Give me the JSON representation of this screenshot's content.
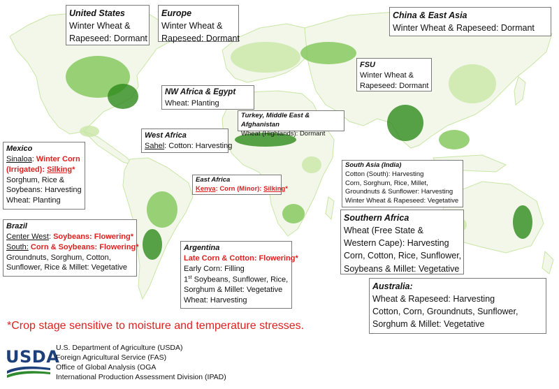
{
  "footnote": "*Crop stage sensitive to moisture and temperature stresses.",
  "agency": {
    "logo_text": "USDA",
    "lines": [
      "U.S. Department of Agriculture (USDA)",
      "Foreign Agricultural Service (FAS)",
      "Office of Global Analysis (OGA",
      "International Production Assessment Division (IPAD)"
    ]
  },
  "colors": {
    "land": "#f2f7ea",
    "crop_light": "#c9e6a6",
    "crop_medium": "#7fc557",
    "crop_dark": "#2e8a1c",
    "box_border": "#7a7a7a",
    "sensitive_text": "#e02020",
    "usda_blue": "#1d3f7a",
    "usda_green": "#2f8a2e"
  },
  "regions": {
    "united_states": {
      "title": "United States",
      "l1": "Winter Wheat &",
      "l2": "Rapeseed: Dormant"
    },
    "europe": {
      "title": "Europe",
      "l1": "Winter Wheat &",
      "l2": "Rapeseed: Dormant"
    },
    "china": {
      "title": "China & East Asia",
      "l1": "Winter Wheat & Rapeseed: Dormant"
    },
    "fsu": {
      "title": "FSU",
      "l1": "Winter Wheat &",
      "l2": "Rapeseed: Dormant"
    },
    "nw_africa": {
      "title": "NW Africa & Egypt",
      "l1": "Wheat: Planting"
    },
    "turkey": {
      "title": "Turkey, Middle East & Afghanistan",
      "l1": "Wheat (Highlands): Dormant"
    },
    "west_africa": {
      "title": "West Africa",
      "l1_u": "Sahel",
      "l1": ": Cotton: Harvesting"
    },
    "mexico": {
      "title": "Mexico",
      "l1_u": "Sinaloa",
      "l1": ": ",
      "l1_r": "Winter Corn",
      "l2_r": "(Irrigated): ",
      "l2_ru": "Silking",
      "l2_r2": "*",
      "l3": "Sorghum, Rice &",
      "l4": "Soybeans: Harvesting",
      "l5": "Wheat: Planting"
    },
    "east_africa": {
      "title": "East Africa",
      "l1_u": "Kenya",
      "l1_r": ": Corn (Minor): ",
      "l1_ru": "Silking",
      "l1_r2": "*"
    },
    "south_asia": {
      "title": "South Asia (India)",
      "l1": "Cotton (South): Harvesting",
      "l2": "Corn, Sorghum, Rice, Millet,",
      "l3": "Groundnuts & Sunflower: Harvesting",
      "l4": "Winter Wheat & Rapeseed: Vegetative"
    },
    "brazil": {
      "title": "Brazil",
      "l1_u": "Center West",
      "l1": ": ",
      "l1_r": "Soybeans: Flowering*",
      "l2_u": "South:",
      "l2_r": " Corn & Soybeans: Flowering*",
      "l3": "Groundnuts, Sorghum, Cotton,",
      "l4": "Sunflower, Rice & Millet: Vegetative"
    },
    "argentina": {
      "title": "Argentina",
      "l1_r": "Late Corn & Cotton: Flowering*",
      "l2": "Early Corn: Filling",
      "l3_pre": "1",
      "l3_sup": "st",
      "l3": " Soybeans, Sunflower, Rice,",
      "l4": "Sorghum & Millet: Vegetative",
      "l5": "Wheat: Harvesting"
    },
    "southern_africa": {
      "title": "Southern Africa",
      "l1": "Wheat (Free State &",
      "l2": "Western Cape): Harvesting",
      "l3": "Corn, Cotton, Rice, Sunflower,",
      "l4": "Soybeans & Millet: Vegetative"
    },
    "australia": {
      "title": "Australia:",
      "l1": "Wheat & Rapeseed: Harvesting",
      "l2": "Cotton, Corn, Groundnuts, Sunflower,",
      "l3": "Sorghum & Millet: Vegetative"
    }
  }
}
